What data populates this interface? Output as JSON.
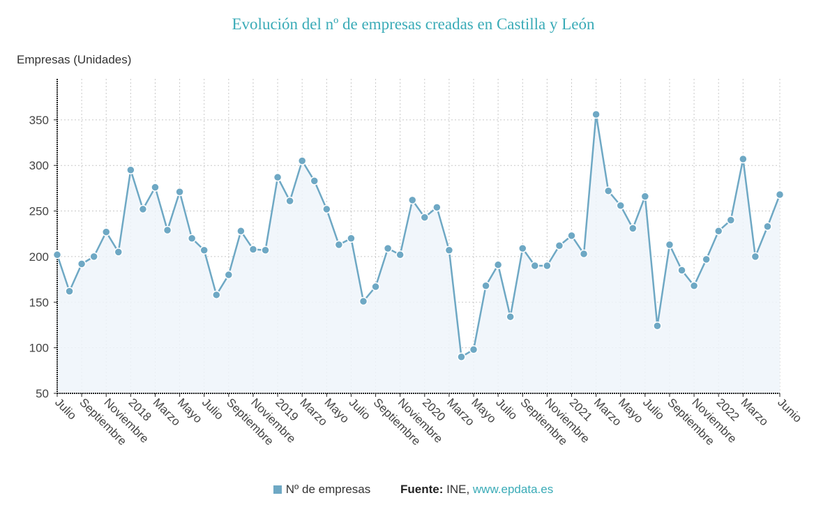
{
  "chart_data": {
    "type": "line",
    "title": "Evolución del nº de empresas creadas en Castilla y León",
    "ylabel": "Empresas (Unidades)",
    "xlabel": "",
    "ylim": [
      50,
      395
    ],
    "yticks": [
      50,
      100,
      150,
      200,
      250,
      300,
      350
    ],
    "grid": true,
    "legend_position": "bottom-center",
    "x_tick_labels": [
      "Julio",
      "Septiembre",
      "Noviembre",
      "2018",
      "Marzo",
      "Mayo",
      "Julio",
      "Septiembre",
      "Noviembre",
      "2019",
      "Marzo",
      "Mayo",
      "Julio",
      "Septiembre",
      "Noviembre",
      "2020",
      "Marzo",
      "Mayo",
      "Julio",
      "Septiembre",
      "Noviembre",
      "2021",
      "Marzo",
      "Mayo",
      "Julio",
      "Septiembre",
      "Noviembre",
      "2022",
      "Marzo",
      "Junio"
    ],
    "x_tick_indices": [
      0,
      2,
      4,
      6,
      8,
      10,
      12,
      14,
      16,
      18,
      20,
      22,
      24,
      26,
      28,
      30,
      32,
      34,
      36,
      38,
      40,
      42,
      44,
      46,
      48,
      50,
      52,
      54,
      56,
      59
    ],
    "x": [
      "2017-07",
      "2017-08",
      "2017-09",
      "2017-10",
      "2017-11",
      "2017-12",
      "2018-01",
      "2018-02",
      "2018-03",
      "2018-04",
      "2018-05",
      "2018-06",
      "2018-07",
      "2018-08",
      "2018-09",
      "2018-10",
      "2018-11",
      "2018-12",
      "2019-01",
      "2019-02",
      "2019-03",
      "2019-04",
      "2019-05",
      "2019-06",
      "2019-07",
      "2019-08",
      "2019-09",
      "2019-10",
      "2019-11",
      "2019-12",
      "2020-01",
      "2020-02",
      "2020-03",
      "2020-04",
      "2020-05",
      "2020-06",
      "2020-07",
      "2020-08",
      "2020-09",
      "2020-10",
      "2020-11",
      "2020-12",
      "2021-01",
      "2021-02",
      "2021-03",
      "2021-04",
      "2021-05",
      "2021-06",
      "2021-07",
      "2021-08",
      "2021-09",
      "2021-10",
      "2021-11",
      "2021-12",
      "2022-01",
      "2022-02",
      "2022-03",
      "2022-04",
      "2022-05",
      "2022-06"
    ],
    "series": [
      {
        "name": "Nº de empresas",
        "color": "#6ea8c4",
        "values": [
          202,
          162,
          192,
          200,
          227,
          205,
          295,
          252,
          276,
          229,
          271,
          220,
          207,
          158,
          180,
          228,
          208,
          207,
          287,
          261,
          305,
          283,
          252,
          213,
          220,
          151,
          167,
          209,
          202,
          262,
          243,
          254,
          207,
          90,
          98,
          168,
          191,
          134,
          209,
          190,
          190,
          212,
          223,
          203,
          356,
          272,
          256,
          231,
          266,
          124,
          213,
          185,
          168,
          197,
          228,
          240,
          307,
          200,
          233,
          268
        ]
      }
    ]
  },
  "legend": {
    "series_label": "Nº de empresas",
    "source_label": "Fuente:",
    "source_text": " INE, ",
    "source_link": "www.epdata.es"
  }
}
